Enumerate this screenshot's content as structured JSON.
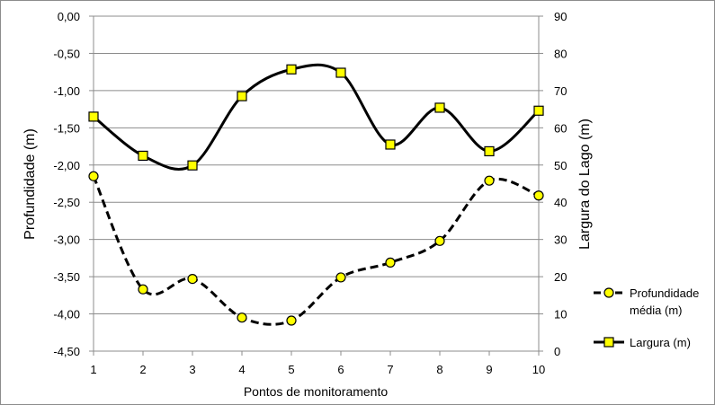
{
  "chart_data": {
    "type": "line",
    "categories": [
      "1",
      "2",
      "3",
      "4",
      "5",
      "6",
      "7",
      "8",
      "9",
      "10"
    ],
    "xlabel": "Pontos de monitoramento",
    "y_left": {
      "label": "Profundidade (m)",
      "range": [
        -4.5,
        0
      ],
      "ticks": [
        "0,00",
        "-0,50",
        "-1,00",
        "-1,50",
        "-2,00",
        "-2,50",
        "-3,00",
        "-3,50",
        "-4,00",
        "-4,50"
      ]
    },
    "y_right": {
      "label": "Largura do Lago (m)",
      "range": [
        0,
        90
      ],
      "ticks": [
        "90",
        "80",
        "70",
        "60",
        "50",
        "40",
        "30",
        "20",
        "10",
        "0"
      ]
    },
    "series": [
      {
        "name": "Profundidade média (m)",
        "legend_lines": [
          "Profundidade",
          "média (m)"
        ],
        "axis": "left",
        "values": [
          -2.15,
          -3.67,
          -3.53,
          -4.05,
          -4.09,
          -3.51,
          -3.31,
          -3.02,
          -2.21,
          -2.41
        ],
        "line_style": "dashed",
        "marker": "circle",
        "marker_color": "#ffff00"
      },
      {
        "name": "Largura (m)",
        "legend_lines": [
          "Largura (m)"
        ],
        "axis": "right",
        "values": [
          63,
          52.5,
          49.9,
          68.5,
          75.7,
          74.8,
          55.5,
          65.4,
          53.7,
          64.6
        ],
        "line_style": "solid",
        "marker": "square",
        "marker_color": "#ffff00"
      }
    ],
    "grid": "horizontal",
    "legend_position": "right"
  }
}
